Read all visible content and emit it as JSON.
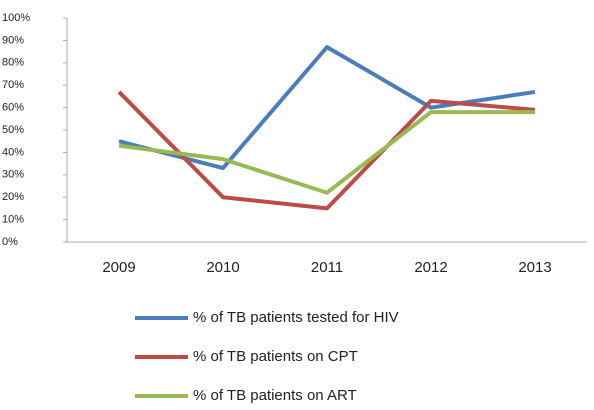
{
  "chart_data": {
    "type": "line",
    "categories": [
      "2009",
      "2010",
      "2011",
      "2012",
      "2013"
    ],
    "series": [
      {
        "name": "% of TB patients tested for HIV",
        "color": "#4a7ebb",
        "values": [
          45,
          33,
          87,
          60,
          67
        ]
      },
      {
        "name": "% of TB patients on CPT",
        "color": "#be4b48",
        "values": [
          67,
          20,
          15,
          63,
          59
        ]
      },
      {
        "name": "% of TB patients on ART",
        "color": "#98b954",
        "values": [
          43,
          37,
          22,
          58,
          58
        ]
      }
    ],
    "ylim": [
      0,
      100
    ],
    "yticks": [
      {
        "value": 0,
        "label": "0%"
      },
      {
        "value": 10,
        "label": "10%"
      },
      {
        "value": 20,
        "label": "20%"
      },
      {
        "value": 30,
        "label": "30%"
      },
      {
        "value": 40,
        "label": "40%"
      },
      {
        "value": 50,
        "label": "50%"
      },
      {
        "value": 60,
        "label": "60%"
      },
      {
        "value": 70,
        "label": "70%"
      },
      {
        "value": 80,
        "label": "80%"
      },
      {
        "value": 90,
        "label": "90%"
      },
      {
        "value": 100,
        "label": "100%"
      }
    ],
    "grid": false,
    "legend": "bottom"
  }
}
